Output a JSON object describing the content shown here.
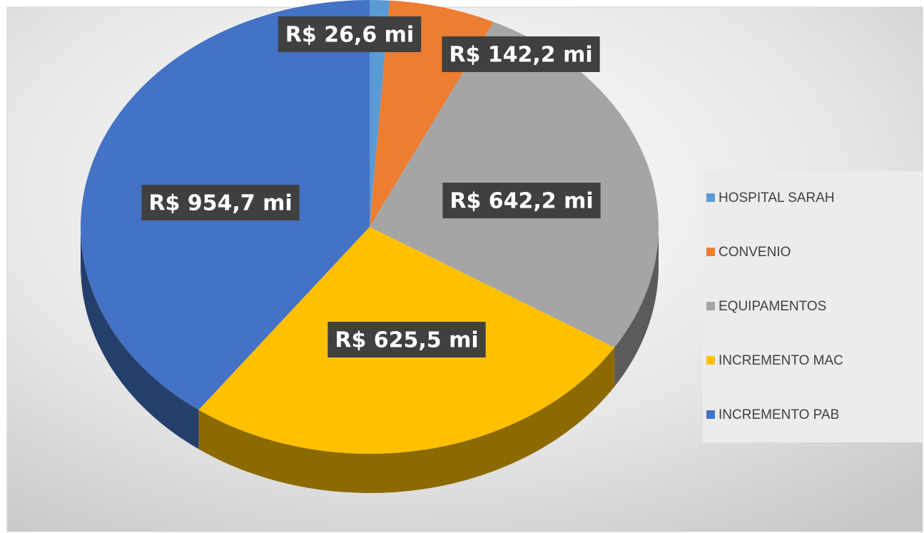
{
  "chart_data": {
    "type": "pie",
    "categories": [
      "HOSPITAL SARAH",
      "CONVENIO",
      "EQUIPAMENTOS",
      "INCREMENTO MAC",
      "INCREMENTO PAB"
    ],
    "values": [
      26.6,
      142.2,
      642.2,
      625.5,
      954.7
    ],
    "value_labels": [
      "R$ 26,6 mi",
      "R$ 142,2 mi",
      "R$ 642,2 mi",
      "R$ 625,5 mi",
      "R$ 954,7 mi"
    ],
    "colors": [
      "#5b9bd5",
      "#ed7d31",
      "#a5a5a5",
      "#ffc000",
      "#4472c4"
    ],
    "legend": "right"
  }
}
